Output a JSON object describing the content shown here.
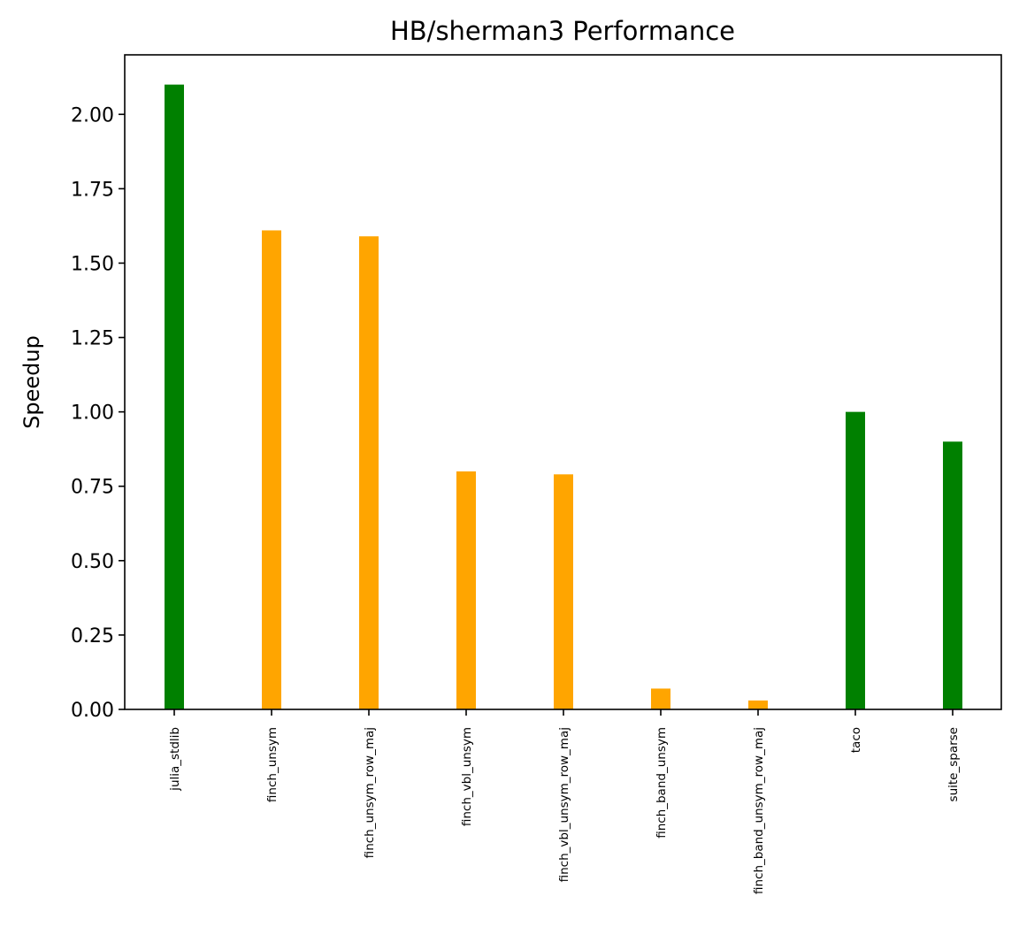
{
  "chart_data": {
    "type": "bar",
    "title": "HB/sherman3 Performance",
    "xlabel": "",
    "ylabel": "Speedup",
    "categories": [
      "julia_stdlib",
      "finch_unsym",
      "finch_unsym_row_maj",
      "finch_vbl_unsym",
      "finch_vbl_unsym_row_maj",
      "finch_band_unsym",
      "finch_band_unsym_row_maj",
      "taco",
      "suite_sparse"
    ],
    "values": [
      2.1,
      1.61,
      1.59,
      0.8,
      0.79,
      0.07,
      0.03,
      1.0,
      0.9
    ],
    "bar_colors": [
      "#008000",
      "#ffa500",
      "#ffa500",
      "#ffa500",
      "#ffa500",
      "#ffa500",
      "#ffa500",
      "#008000",
      "#008000"
    ],
    "ylim": [
      0,
      2.2
    ],
    "yticks": [
      0.0,
      0.25,
      0.5,
      0.75,
      1.0,
      1.25,
      1.5,
      1.75,
      2.0
    ],
    "ytick_labels": [
      "0.00",
      "0.25",
      "0.50",
      "0.75",
      "1.00",
      "1.25",
      "1.50",
      "1.75",
      "2.00"
    ],
    "grid": false,
    "legend": "none"
  }
}
